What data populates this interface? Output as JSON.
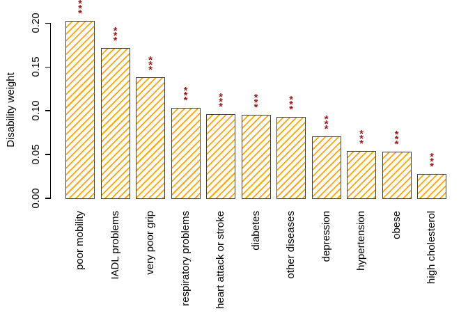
{
  "chart_data": {
    "type": "bar",
    "title": "",
    "ylabel": "Disability weight",
    "xlabel": "",
    "ylim": [
      0,
      0.2
    ],
    "grid": false,
    "legend": null,
    "yticks": [
      {
        "value": 0.0,
        "label": "0.00"
      },
      {
        "value": 0.05,
        "label": "0.05"
      },
      {
        "value": 0.1,
        "label": "0.10"
      },
      {
        "value": 0.15,
        "label": "0.15"
      },
      {
        "value": 0.2,
        "label": "0.20"
      }
    ],
    "categories": [
      "poor mobility",
      "IADL problems",
      "very poor grip",
      "respiratory problems",
      "heart attack or stroke",
      "diabetes",
      "other diseases",
      "depression",
      "hypertension",
      "obese",
      "high cholesterol"
    ],
    "values": [
      0.203,
      0.172,
      0.138,
      0.103,
      0.096,
      0.095,
      0.093,
      0.071,
      0.054,
      0.053,
      0.028
    ],
    "significance": [
      "***",
      "***",
      "***",
      "***",
      "***",
      "***",
      "***",
      "***",
      "***",
      "***",
      "***"
    ],
    "style": {
      "background": "#ffffff",
      "bar_fill": "#ffffff",
      "hatch_color": "#ffa500",
      "hatch_direction": "forward-diagonal",
      "bar_border": "#3f3f3f",
      "significance_color": "#9b1b1b",
      "axis_color": "#000000",
      "text_color": "#000000"
    }
  }
}
